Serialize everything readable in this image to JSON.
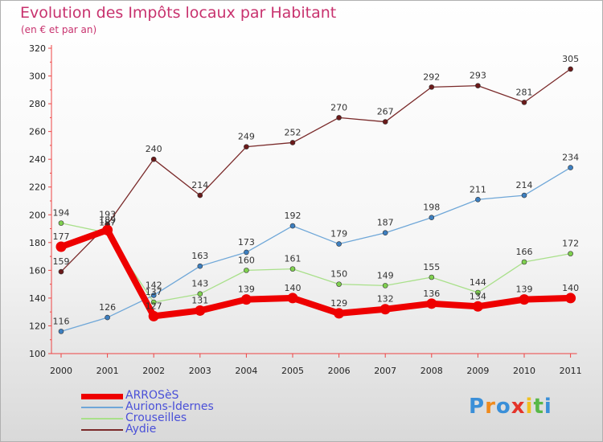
{
  "title": "Evolution des Impôts locaux par Habitant",
  "subtitle": "(en € et par an)",
  "brand": "Proxiti",
  "chart_data": {
    "type": "line",
    "title": "Evolution des Impôts locaux par Habitant",
    "subtitle": "(en € et par an)",
    "xlabel": "",
    "ylabel": "",
    "categories": [
      "2000",
      "2001",
      "2002",
      "2003",
      "2004",
      "2005",
      "2006",
      "2007",
      "2008",
      "2009",
      "2010",
      "2011"
    ],
    "ylim": [
      100,
      320
    ],
    "yticks": [
      100,
      120,
      140,
      160,
      180,
      200,
      220,
      240,
      260,
      280,
      300,
      320
    ],
    "grid": false,
    "legend_position": "bottom-left",
    "series": [
      {
        "name": "ARROSèS",
        "color": "#ee0000",
        "values": [
          177,
          189,
          127,
          131,
          139,
          140,
          129,
          132,
          136,
          134,
          139,
          140
        ]
      },
      {
        "name": "Aurions-Idernes",
        "color": "#6fa7d8",
        "marker": "#3d7fc0",
        "values": [
          116,
          126,
          142,
          163,
          173,
          192,
          179,
          187,
          198,
          211,
          214,
          234
        ]
      },
      {
        "name": "Crouseilles",
        "color": "#a9e08a",
        "marker": "#7fd04f",
        "values": [
          194,
          187,
          137,
          143,
          160,
          161,
          150,
          149,
          155,
          144,
          166,
          172
        ]
      },
      {
        "name": "Aydie",
        "color": "#7a2a2a",
        "marker": "#6b1a1a",
        "values": [
          159,
          193,
          240,
          214,
          249,
          252,
          270,
          267,
          292,
          293,
          281,
          305
        ]
      }
    ]
  }
}
